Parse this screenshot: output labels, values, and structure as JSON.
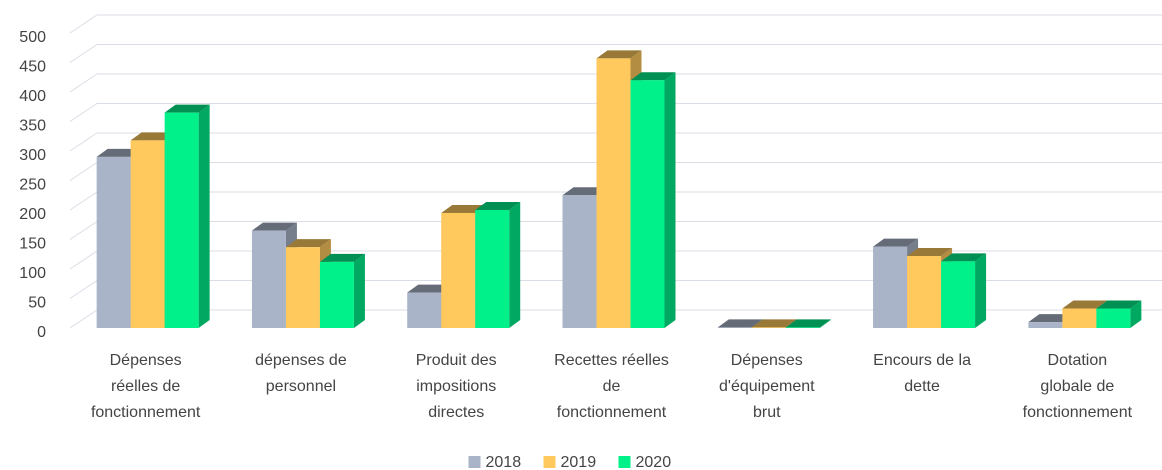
{
  "chart_data": {
    "type": "bar",
    "categories": [
      [
        "Dépenses",
        "réelles de",
        "fonctionnement"
      ],
      [
        "dépenses de",
        "personnel"
      ],
      [
        "Produit des",
        "impositions",
        "directes"
      ],
      [
        "Recettes réelles",
        "de",
        "fonctionnement"
      ],
      [
        "Dépenses",
        "d'équipement",
        "brut"
      ],
      [
        "Encours de la",
        "dette"
      ],
      [
        "Dotation",
        "globale de",
        "fonctionnement"
      ]
    ],
    "series": [
      {
        "name": "2018",
        "color": "#a9b4c8",
        "values": [
          290,
          165,
          60,
          225,
          1,
          138,
          10
        ]
      },
      {
        "name": "2019",
        "color": "#ffc95e",
        "values": [
          318,
          137,
          195,
          457,
          1,
          122,
          33
        ]
      },
      {
        "name": "2020",
        "color": "#00f08a",
        "values": [
          365,
          112,
          200,
          420,
          1,
          113,
          33
        ]
      }
    ],
    "ylim": [
      0,
      500
    ],
    "yticks": [
      0,
      50,
      100,
      150,
      200,
      250,
      300,
      350,
      400,
      450,
      500
    ],
    "grid": true,
    "legend": "bottom"
  }
}
